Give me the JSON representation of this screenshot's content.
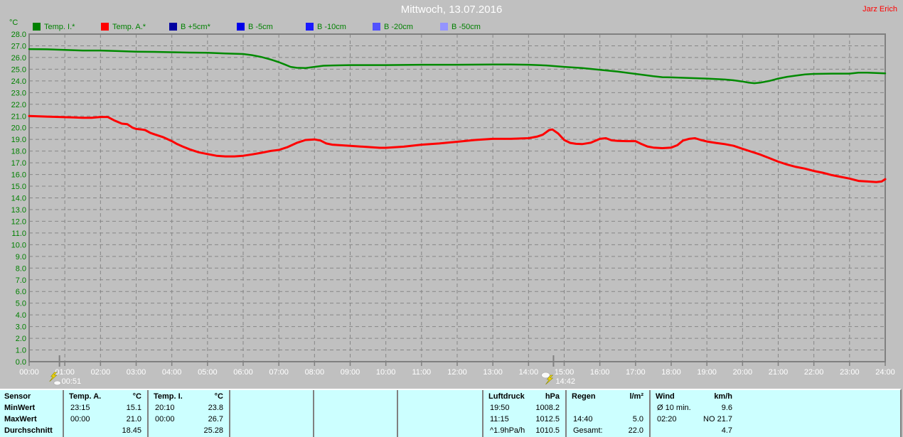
{
  "header": {
    "author": "Jarz Erich",
    "unit_label": "°C",
    "legend": [
      {
        "label": "Temp. I.*",
        "color": "#008000"
      },
      {
        "label": "Temp. A.*",
        "color": "#ff0000"
      },
      {
        "label": "B +5cm*",
        "color": "#0000a0"
      },
      {
        "label": "B -5cm",
        "color": "#0000e8"
      },
      {
        "label": "B -10cm",
        "color": "#1a1aff"
      },
      {
        "label": "B -20cm",
        "color": "#5252ff"
      },
      {
        "label": "B -50cm",
        "color": "#9494ff"
      }
    ]
  },
  "chart_data": {
    "type": "line",
    "title": "Mittwoch, 13.07.2016",
    "ylabel": "°C",
    "ylim": [
      0,
      28
    ],
    "ytick_step": 1.0,
    "grid": "dashed",
    "xlabels": [
      "00:00",
      "01:00",
      "02:00",
      "03:00",
      "04:00",
      "05:00",
      "06:00",
      "07:00",
      "08:00",
      "09:00",
      "10:00",
      "11:00",
      "12:00",
      "13:00",
      "14:00",
      "15:00",
      "16:00",
      "17:00",
      "18:00",
      "19:00",
      "20:00",
      "21:00",
      "22:00",
      "23:00",
      "24:00"
    ],
    "series": [
      {
        "name": "Temp. I.",
        "color": "#008a00",
        "width": 2.5,
        "points": [
          [
            0,
            26.72
          ],
          [
            0.5,
            26.7
          ],
          [
            1,
            26.65
          ],
          [
            1.5,
            26.6
          ],
          [
            2,
            26.6
          ],
          [
            2.5,
            26.55
          ],
          [
            3,
            26.5
          ],
          [
            3.5,
            26.48
          ],
          [
            4,
            26.45
          ],
          [
            4.5,
            26.42
          ],
          [
            5,
            26.4
          ],
          [
            5.5,
            26.35
          ],
          [
            6,
            26.3
          ],
          [
            6.25,
            26.2
          ],
          [
            6.5,
            26.05
          ],
          [
            6.75,
            25.85
          ],
          [
            7,
            25.6
          ],
          [
            7.17,
            25.4
          ],
          [
            7.33,
            25.2
          ],
          [
            7.5,
            25.12
          ],
          [
            7.75,
            25.1
          ],
          [
            8,
            25.2
          ],
          [
            8.25,
            25.3
          ],
          [
            8.5,
            25.32
          ],
          [
            9,
            25.35
          ],
          [
            10,
            25.35
          ],
          [
            11,
            25.38
          ],
          [
            12,
            25.38
          ],
          [
            13,
            25.4
          ],
          [
            13.5,
            25.4
          ],
          [
            14,
            25.38
          ],
          [
            14.5,
            25.32
          ],
          [
            15,
            25.2
          ],
          [
            15.5,
            25.1
          ],
          [
            16,
            24.95
          ],
          [
            16.5,
            24.8
          ],
          [
            17,
            24.6
          ],
          [
            17.25,
            24.5
          ],
          [
            17.5,
            24.4
          ],
          [
            17.75,
            24.32
          ],
          [
            18,
            24.3
          ],
          [
            18.5,
            24.25
          ],
          [
            19,
            24.2
          ],
          [
            19.5,
            24.12
          ],
          [
            19.75,
            24.05
          ],
          [
            20,
            23.95
          ],
          [
            20.17,
            23.85
          ],
          [
            20.33,
            23.8
          ],
          [
            20.5,
            23.85
          ],
          [
            20.75,
            24.0
          ],
          [
            21,
            24.2
          ],
          [
            21.25,
            24.35
          ],
          [
            21.5,
            24.45
          ],
          [
            21.75,
            24.55
          ],
          [
            22,
            24.6
          ],
          [
            22.5,
            24.62
          ],
          [
            23,
            24.62
          ],
          [
            23.25,
            24.7
          ],
          [
            23.5,
            24.7
          ],
          [
            23.75,
            24.68
          ],
          [
            24,
            24.65
          ]
        ]
      },
      {
        "name": "Temp. A.",
        "color": "#ff0000",
        "width": 3,
        "points": [
          [
            0,
            21.0
          ],
          [
            0.5,
            20.95
          ],
          [
            1,
            20.9
          ],
          [
            1.25,
            20.88
          ],
          [
            1.5,
            20.85
          ],
          [
            1.75,
            20.85
          ],
          [
            2,
            20.92
          ],
          [
            2.2,
            20.92
          ],
          [
            2.4,
            20.6
          ],
          [
            2.6,
            20.35
          ],
          [
            2.75,
            20.3
          ],
          [
            2.9,
            20.0
          ],
          [
            3,
            19.9
          ],
          [
            3.15,
            19.85
          ],
          [
            3.25,
            19.8
          ],
          [
            3.4,
            19.55
          ],
          [
            3.5,
            19.45
          ],
          [
            3.75,
            19.2
          ],
          [
            4,
            18.85
          ],
          [
            4.15,
            18.6
          ],
          [
            4.3,
            18.4
          ],
          [
            4.5,
            18.15
          ],
          [
            4.75,
            17.9
          ],
          [
            5,
            17.75
          ],
          [
            5.25,
            17.6
          ],
          [
            5.5,
            17.55
          ],
          [
            5.75,
            17.55
          ],
          [
            6,
            17.6
          ],
          [
            6.25,
            17.72
          ],
          [
            6.5,
            17.85
          ],
          [
            6.75,
            18.0
          ],
          [
            7,
            18.1
          ],
          [
            7.25,
            18.35
          ],
          [
            7.5,
            18.7
          ],
          [
            7.75,
            18.95
          ],
          [
            8,
            19.0
          ],
          [
            8.17,
            18.9
          ],
          [
            8.33,
            18.65
          ],
          [
            8.5,
            18.55
          ],
          [
            9,
            18.45
          ],
          [
            9.5,
            18.35
          ],
          [
            9.83,
            18.28
          ],
          [
            10,
            18.28
          ],
          [
            10.5,
            18.38
          ],
          [
            11,
            18.55
          ],
          [
            11.5,
            18.65
          ],
          [
            12,
            18.8
          ],
          [
            12.5,
            18.95
          ],
          [
            13,
            19.05
          ],
          [
            13.5,
            19.05
          ],
          [
            14,
            19.1
          ],
          [
            14.25,
            19.25
          ],
          [
            14.4,
            19.4
          ],
          [
            14.58,
            19.8
          ],
          [
            14.67,
            19.85
          ],
          [
            14.83,
            19.5
          ],
          [
            15,
            18.95
          ],
          [
            15.17,
            18.7
          ],
          [
            15.33,
            18.62
          ],
          [
            15.5,
            18.6
          ],
          [
            15.75,
            18.72
          ],
          [
            16,
            19.05
          ],
          [
            16.17,
            19.1
          ],
          [
            16.33,
            18.92
          ],
          [
            16.5,
            18.88
          ],
          [
            16.75,
            18.85
          ],
          [
            17,
            18.85
          ],
          [
            17.17,
            18.6
          ],
          [
            17.33,
            18.4
          ],
          [
            17.5,
            18.3
          ],
          [
            17.75,
            18.25
          ],
          [
            18,
            18.3
          ],
          [
            18.17,
            18.5
          ],
          [
            18.33,
            18.9
          ],
          [
            18.5,
            19.05
          ],
          [
            18.67,
            19.1
          ],
          [
            18.83,
            18.95
          ],
          [
            19,
            18.82
          ],
          [
            19.25,
            18.7
          ],
          [
            19.5,
            18.6
          ],
          [
            19.75,
            18.45
          ],
          [
            20,
            18.2
          ],
          [
            20.25,
            17.95
          ],
          [
            20.5,
            17.7
          ],
          [
            20.75,
            17.4
          ],
          [
            21,
            17.1
          ],
          [
            21.25,
            16.85
          ],
          [
            21.5,
            16.65
          ],
          [
            21.75,
            16.5
          ],
          [
            22,
            16.3
          ],
          [
            22.25,
            16.15
          ],
          [
            22.5,
            15.95
          ],
          [
            22.75,
            15.8
          ],
          [
            23,
            15.65
          ],
          [
            23.25,
            15.45
          ],
          [
            23.5,
            15.4
          ],
          [
            23.75,
            15.35
          ],
          [
            23.9,
            15.4
          ],
          [
            24,
            15.6
          ]
        ]
      }
    ],
    "event_markers": [
      {
        "time": "00:51",
        "hour": 0.85,
        "icon": "bolt-cloud"
      },
      {
        "time": "14:42",
        "hour": 14.7,
        "icon": "cloud-bolt"
      }
    ]
  },
  "stats": {
    "row_labels": [
      "Sensor",
      "MinWert",
      "MaxWert",
      "Durchschnitt"
    ],
    "columns": [
      {
        "name": "Temp. A.",
        "unit": "°C",
        "rows": [
          [
            "23:15",
            "15.1"
          ],
          [
            "00:00",
            "21.0"
          ],
          [
            "",
            "18.45"
          ]
        ]
      },
      {
        "name": "Temp. I.",
        "unit": "°C",
        "rows": [
          [
            "20:10",
            "23.8"
          ],
          [
            "00:00",
            "26.7"
          ],
          [
            "",
            "25.28"
          ]
        ]
      },
      {
        "name": "",
        "unit": "",
        "rows": [
          [
            "",
            ""
          ],
          [
            "",
            ""
          ],
          [
            "",
            ""
          ]
        ]
      },
      {
        "name": "",
        "unit": "",
        "rows": [
          [
            "",
            ""
          ],
          [
            "",
            ""
          ],
          [
            "",
            ""
          ]
        ]
      },
      {
        "name": "",
        "unit": "",
        "rows": [
          [
            "",
            ""
          ],
          [
            "",
            ""
          ],
          [
            "",
            ""
          ]
        ]
      },
      {
        "name": "Luftdruck",
        "unit": "hPa",
        "rows": [
          [
            "19:50",
            "1008.2"
          ],
          [
            "11:15",
            "1012.5"
          ],
          [
            "^1.9hPa/h",
            "1010.5"
          ]
        ]
      },
      {
        "name": "Regen",
        "unit": "l/m²",
        "rows": [
          [
            "",
            ""
          ],
          [
            "14:40",
            "5.0"
          ],
          [
            "Gesamt:",
            "22.0"
          ]
        ]
      },
      {
        "name": "Wind",
        "unit": "km/h",
        "rows": [
          [
            "Ø 10 min.",
            "9.6"
          ],
          [
            "02:20",
            "NO 21.7"
          ],
          [
            "",
            "4.7"
          ]
        ]
      }
    ]
  }
}
